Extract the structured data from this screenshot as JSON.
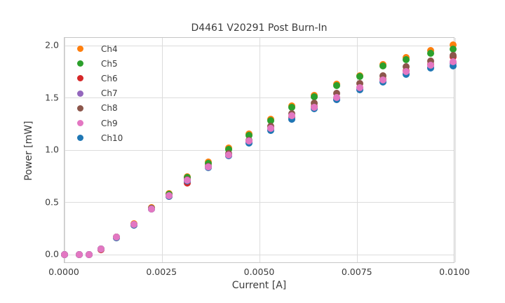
{
  "title": "D4461 V20291 Post Burn-In",
  "legend": {
    "entries": [
      "Ch4",
      "Ch5",
      "Ch6",
      "Ch7",
      "Ch8",
      "Ch9",
      "Ch10"
    ],
    "position": "upper left"
  },
  "chart_data": {
    "type": "scatter",
    "title": "D4461 V20291 Post Burn-In",
    "xlabel": "Current [A]",
    "ylabel": "Power [mW]",
    "xlim": [
      0.0,
      0.01
    ],
    "ylim": [
      -0.085,
      2.075
    ],
    "x_ticks": [
      0.0,
      0.0025,
      0.005,
      0.0075,
      0.01
    ],
    "x_tick_labels": [
      "0.0000",
      "0.0025",
      "0.0050",
      "0.0075",
      "0.0100"
    ],
    "y_ticks": [
      0.0,
      0.5,
      1.0,
      1.5,
      2.0
    ],
    "y_tick_labels": [
      "0.0",
      "0.5",
      "1.0",
      "1.5",
      "2.0"
    ],
    "grid": true,
    "marker_diameter_px": 10,
    "x": [
      0.0,
      0.00038,
      0.00063,
      0.00094,
      0.00132,
      0.00178,
      0.00223,
      0.00268,
      0.00315,
      0.00368,
      0.0042,
      0.00473,
      0.00527,
      0.00582,
      0.0064,
      0.00697,
      0.00755,
      0.00815,
      0.00875,
      0.00938,
      0.00995
    ],
    "series": [
      {
        "name": "Ch4",
        "color": "#ff7f0e",
        "values": [
          0.0,
          0.0,
          0.0,
          0.058,
          0.172,
          0.298,
          0.452,
          0.585,
          0.75,
          0.885,
          1.02,
          1.155,
          1.3,
          1.425,
          1.525,
          1.632,
          1.715,
          1.818,
          1.888,
          1.952,
          2.005
        ]
      },
      {
        "name": "Ch5",
        "color": "#2ca02c",
        "values": [
          0.0,
          0.0,
          0.0,
          0.056,
          0.17,
          0.294,
          0.447,
          0.578,
          0.74,
          0.876,
          1.008,
          1.14,
          1.283,
          1.408,
          1.513,
          1.62,
          1.703,
          1.808,
          1.868,
          1.925,
          1.97
        ]
      },
      {
        "name": "Ch6",
        "color": "#d62728",
        "values": [
          0.0,
          0.0,
          0.0,
          0.052,
          0.163,
          0.284,
          0.436,
          0.56,
          0.685,
          0.842,
          0.958,
          1.084,
          1.213,
          1.32,
          1.418,
          1.5,
          1.598,
          1.68,
          1.758,
          1.82,
          1.895
        ]
      },
      {
        "name": "Ch7",
        "color": "#9467bd",
        "values": [
          0.0,
          0.0,
          0.0,
          0.056,
          0.169,
          0.288,
          0.44,
          0.564,
          0.705,
          0.839,
          0.95,
          1.078,
          1.203,
          1.3,
          1.403,
          1.488,
          1.588,
          1.66,
          1.736,
          1.793,
          1.832
        ]
      },
      {
        "name": "Ch8",
        "color": "#8c564b",
        "values": [
          0.0,
          0.0,
          0.0,
          0.055,
          0.168,
          0.29,
          0.443,
          0.568,
          0.72,
          0.848,
          0.97,
          1.098,
          1.23,
          1.348,
          1.45,
          1.548,
          1.638,
          1.712,
          1.798,
          1.855,
          1.91
        ]
      },
      {
        "name": "Ch10",
        "color": "#1f77b4",
        "values": [
          0.0,
          0.0,
          0.0,
          0.053,
          0.165,
          0.286,
          0.435,
          0.558,
          0.706,
          0.836,
          0.946,
          1.07,
          1.188,
          1.296,
          1.396,
          1.486,
          1.578,
          1.65,
          1.728,
          1.786,
          1.81
        ]
      },
      {
        "name": "Ch9",
        "color": "#e377c2",
        "values": [
          0.0,
          0.0,
          0.0,
          0.054,
          0.167,
          0.289,
          0.44,
          0.565,
          0.71,
          0.844,
          0.957,
          1.086,
          1.211,
          1.328,
          1.413,
          1.505,
          1.596,
          1.67,
          1.75,
          1.813,
          1.846
        ]
      }
    ]
  }
}
